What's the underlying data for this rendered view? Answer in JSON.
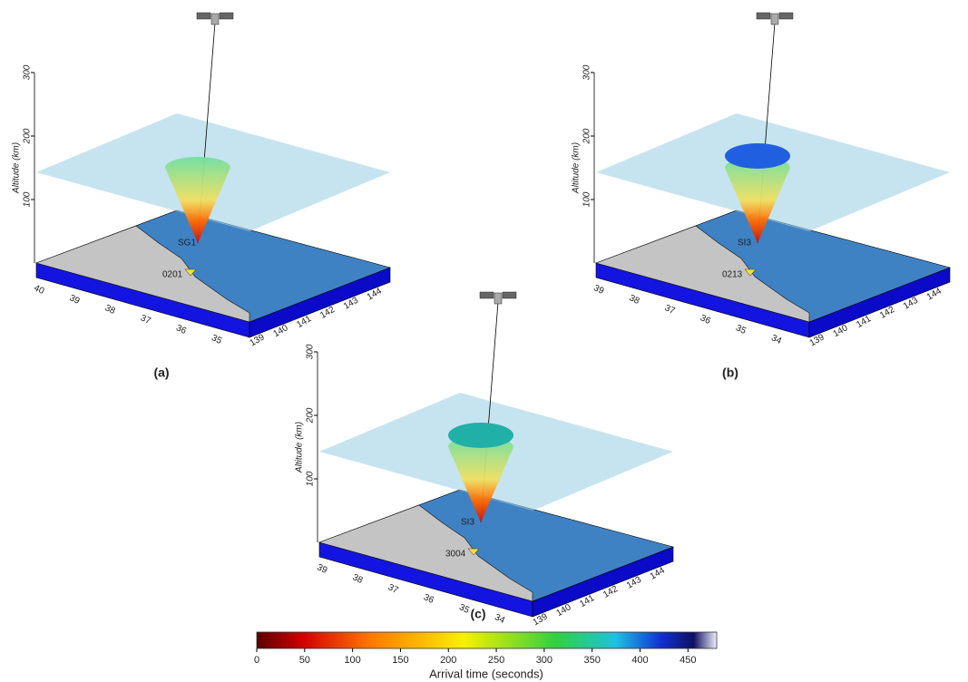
{
  "panels": [
    {
      "label": "(a)",
      "altitude_label": "Altitude (km)",
      "altitude_ticks": [
        100,
        200,
        300
      ],
      "station": "SG1",
      "receiver": "0201",
      "latitudes": [
        40,
        39,
        38,
        37,
        36,
        35
      ],
      "longitudes": [
        139,
        140,
        141,
        142,
        143,
        144
      ]
    },
    {
      "label": "(b)",
      "altitude_label": "Altitude (km)",
      "altitude_ticks": [
        100,
        200,
        300
      ],
      "station": "SI3",
      "receiver": "0213",
      "latitudes": [
        39,
        38,
        37,
        36,
        35,
        34
      ],
      "longitudes": [
        139,
        140,
        141,
        142,
        143,
        144
      ]
    },
    {
      "label": "(c)",
      "altitude_label": "Altitude (km)",
      "altitude_ticks": [
        100,
        200,
        300
      ],
      "station": "SI3",
      "receiver": "3004",
      "latitudes": [
        39,
        38,
        37,
        36,
        35,
        34
      ],
      "longitudes": [
        139,
        140,
        141,
        142,
        143,
        144
      ]
    }
  ],
  "colorbar": {
    "label": "Arrival time (seconds)",
    "lim": [
      0,
      480
    ],
    "ticks": [
      0,
      50,
      100,
      150,
      200,
      250,
      300,
      350,
      400,
      450
    ]
  }
}
